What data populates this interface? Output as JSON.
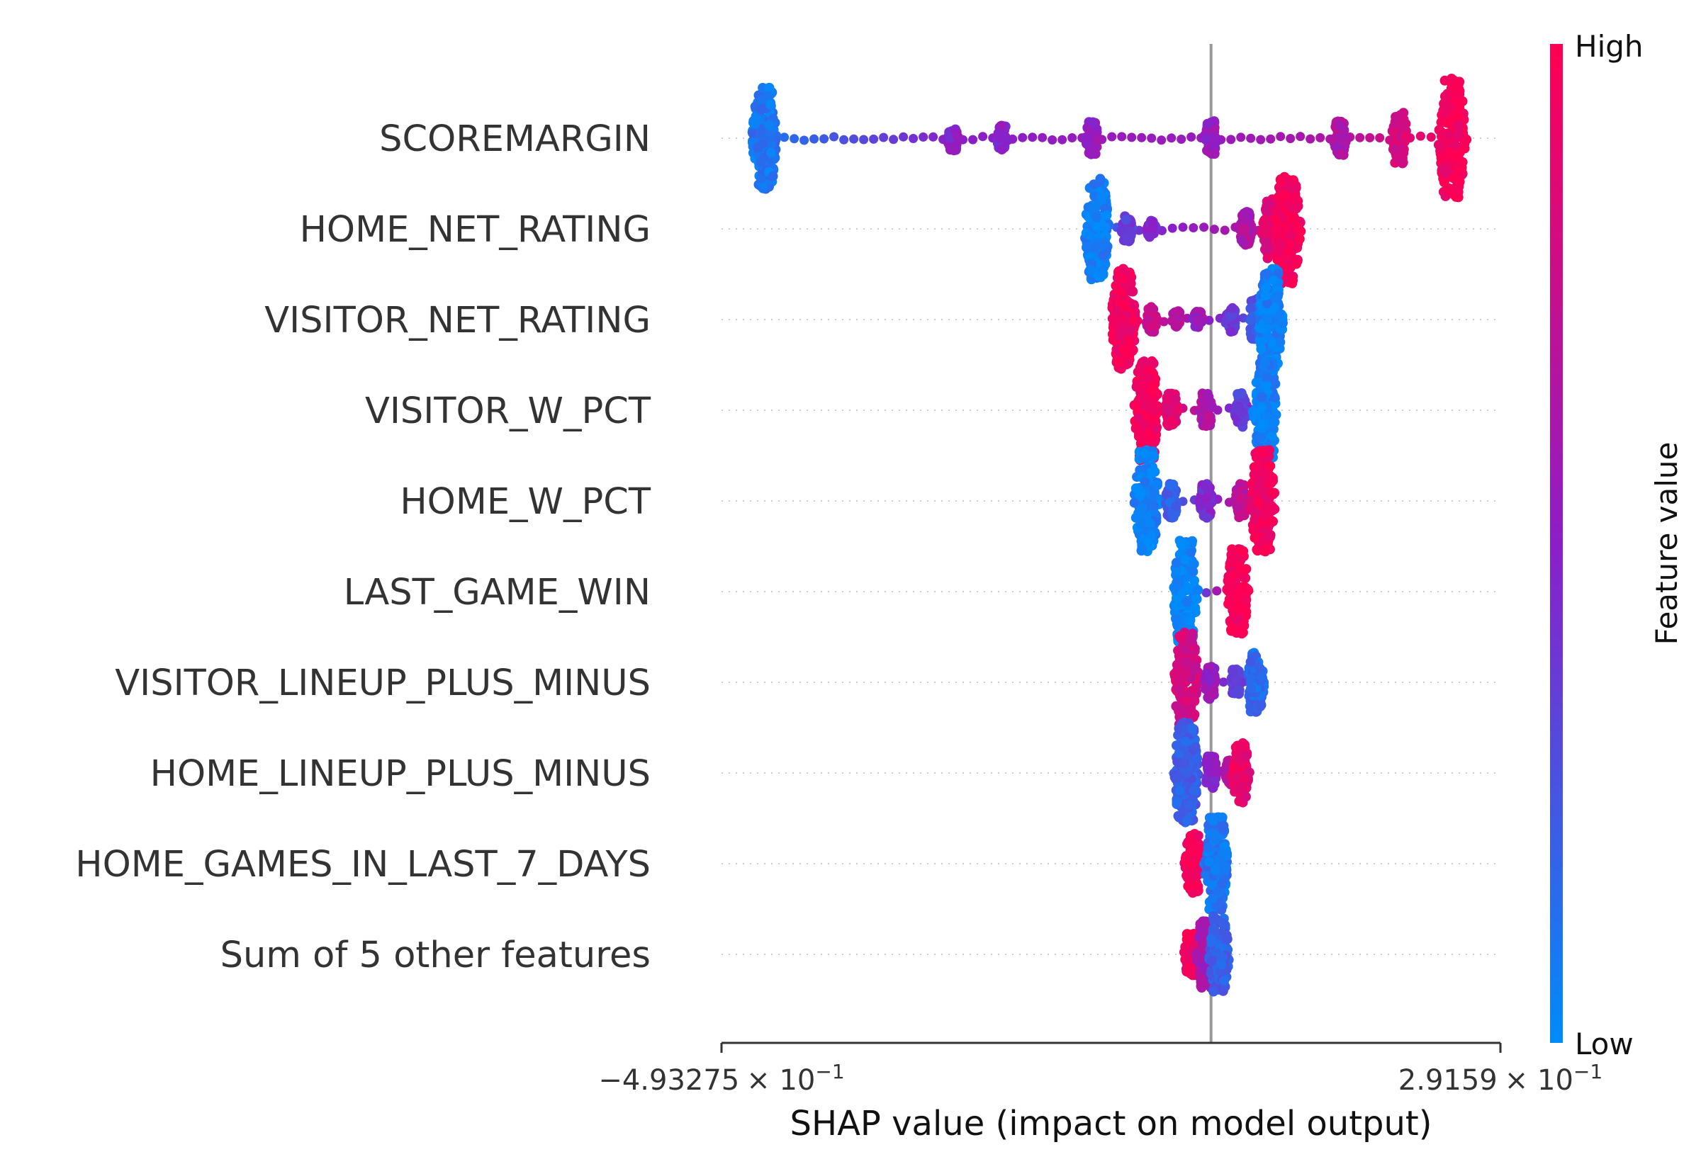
{
  "chart_data": {
    "type": "scatter",
    "subtype": "shap-beeswarm",
    "xlabel": "SHAP value (impact on model output)",
    "xlim": [
      -0.493275,
      0.29159
    ],
    "x_ticks": [
      {
        "value": -0.493275,
        "mantissa": "−4.93275",
        "base": "× 10",
        "exp": "−1"
      },
      {
        "value": 0.29159,
        "mantissa": "2.9159",
        "base": "× 10",
        "exp": "−1"
      }
    ],
    "baseline": 0,
    "colorbar": {
      "label": "Feature value",
      "high_label": "High",
      "low_label": "Low",
      "low_color": "#008bfb",
      "mid_color": "#8c1ec8",
      "high_color": "#ff0052"
    },
    "features": [
      {
        "name": "SCOREMARGIN",
        "clusters": [
          [
            -0.45,
            0.1,
            12
          ],
          [
            -0.26,
            0.5,
            3
          ],
          [
            -0.21,
            0.5,
            3
          ],
          [
            -0.12,
            0.55,
            4
          ],
          [
            0.0,
            0.55,
            4
          ],
          [
            0.13,
            0.65,
            4
          ],
          [
            0.19,
            0.82,
            6
          ],
          [
            0.243,
            0.97,
            14
          ]
        ]
      },
      {
        "name": "HOME_NET_RATING",
        "clusters": [
          [
            -0.115,
            0.05,
            12
          ],
          [
            -0.085,
            0.35,
            3
          ],
          [
            -0.06,
            0.45,
            2
          ],
          [
            0.035,
            0.65,
            4
          ],
          [
            0.06,
            0.85,
            7
          ],
          [
            0.077,
            0.97,
            13
          ]
        ]
      },
      {
        "name": "VISITOR_NET_RATING",
        "clusters": [
          [
            -0.088,
            0.95,
            12
          ],
          [
            -0.06,
            0.75,
            3
          ],
          [
            -0.035,
            0.65,
            2
          ],
          [
            -0.013,
            0.55,
            2
          ],
          [
            0.02,
            0.4,
            3
          ],
          [
            0.045,
            0.25,
            5
          ],
          [
            0.06,
            0.05,
            12
          ]
        ]
      },
      {
        "name": "VISITOR_W_PCT",
        "clusters": [
          [
            -0.065,
            0.97,
            12
          ],
          [
            -0.04,
            0.85,
            4
          ],
          [
            -0.005,
            0.65,
            4
          ],
          [
            0.03,
            0.35,
            4
          ],
          [
            0.055,
            0.05,
            12
          ]
        ]
      },
      {
        "name": "HOME_W_PCT",
        "clusters": [
          [
            -0.065,
            0.05,
            12
          ],
          [
            -0.04,
            0.2,
            4
          ],
          [
            -0.005,
            0.45,
            4
          ],
          [
            0.03,
            0.7,
            4
          ],
          [
            0.052,
            0.95,
            12
          ]
        ]
      },
      {
        "name": "LAST_GAME_WIN",
        "clusters": [
          [
            -0.026,
            0.02,
            12
          ],
          [
            0.027,
            0.98,
            10
          ]
        ]
      },
      {
        "name": "VISITOR_LINEUP_PLUS_MINUS",
        "clusters": [
          [
            -0.025,
            0.8,
            12
          ],
          [
            0.0,
            0.55,
            4
          ],
          [
            0.025,
            0.35,
            3
          ],
          [
            0.045,
            0.15,
            7
          ]
        ]
      },
      {
        "name": "HOME_LINEUP_PLUS_MINUS",
        "clusters": [
          [
            -0.025,
            0.2,
            12
          ],
          [
            0.0,
            0.5,
            4
          ],
          [
            0.02,
            0.7,
            3
          ],
          [
            0.03,
            0.9,
            7
          ]
        ]
      },
      {
        "name": "HOME_GAMES_IN_LAST_7_DAYS",
        "clusters": [
          [
            -0.018,
            0.97,
            7
          ],
          [
            0.005,
            0.1,
            11
          ]
        ]
      },
      {
        "name": "Sum of 5 other features",
        "clusters": [
          [
            -0.02,
            0.95,
            5
          ],
          [
            -0.005,
            0.6,
            8
          ],
          [
            0.008,
            0.2,
            9
          ]
        ]
      }
    ]
  }
}
